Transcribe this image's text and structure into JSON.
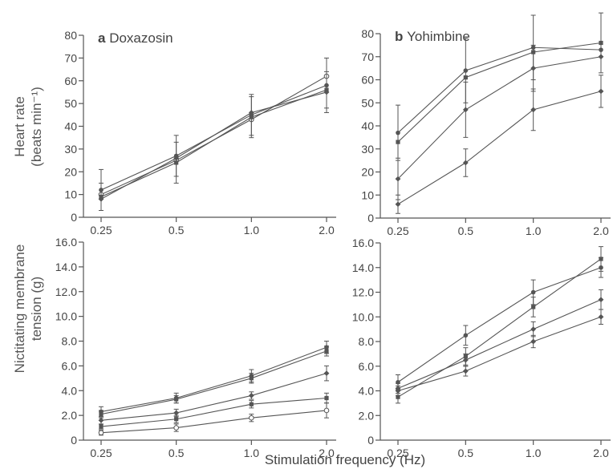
{
  "figure": {
    "ylabel_top": [
      "Heart rate",
      "(beats min⁻¹)"
    ],
    "ylabel_bottom": [
      "Nictitating membrane",
      "tension (g)"
    ],
    "xlabel": "Stimulation frequency (Hz)"
  },
  "chart_data": [
    {
      "id": "doxazosin-heart-rate",
      "type": "line",
      "panel_letter": "a",
      "title": "Doxazosin",
      "x": [
        0.25,
        0.5,
        1.0,
        2.0
      ],
      "xscale": "log",
      "xticks": [
        "0.25",
        "0.5",
        "1.0",
        "2.0"
      ],
      "ylim": [
        0,
        80
      ],
      "yticks": [
        "0",
        "10",
        "20",
        "30",
        "40",
        "50",
        "60",
        "70",
        "80"
      ],
      "grid": false,
      "series": [
        {
          "marker": "open-circle",
          "values": [
            10,
            25,
            43,
            62
          ],
          "err": [
            0,
            0,
            0,
            0
          ]
        },
        {
          "marker": "filled-circle",
          "values": [
            12,
            27,
            45,
            58
          ],
          "err": [
            9,
            9,
            9,
            12
          ]
        },
        {
          "marker": "filled-square",
          "values": [
            9,
            24,
            44,
            56
          ],
          "err": [
            6,
            9,
            9,
            8
          ]
        },
        {
          "marker": "filled-diamond",
          "values": [
            8,
            26,
            46,
            55
          ],
          "err": [
            0,
            0,
            0,
            0
          ]
        }
      ]
    },
    {
      "id": "yohimbine-heart-rate",
      "type": "line",
      "panel_letter": "b",
      "title": "Yohimbine",
      "x": [
        0.25,
        0.5,
        1.0,
        2.0
      ],
      "xscale": "log",
      "xticks": [
        "0.25",
        "0.5",
        "1.0",
        "2.0"
      ],
      "ylim": [
        0,
        80
      ],
      "yticks": [
        "0",
        "10",
        "20",
        "30",
        "40",
        "50",
        "60",
        "70",
        "80"
      ],
      "grid": false,
      "series": [
        {
          "marker": "filled-circle",
          "values": [
            37,
            64,
            74,
            73
          ],
          "err": [
            12,
            14,
            14,
            0
          ]
        },
        {
          "marker": "filled-square",
          "values": [
            33,
            61,
            72,
            76
          ],
          "err": [
            0,
            0,
            0,
            13
          ]
        },
        {
          "marker": "filled-diamond",
          "values": [
            17,
            47,
            65,
            70
          ],
          "err": [
            9,
            12,
            10,
            0
          ]
        },
        {
          "marker": "filled-diamond",
          "values": [
            6,
            24,
            47,
            55
          ],
          "err": [
            4,
            6,
            9,
            7
          ]
        }
      ]
    },
    {
      "id": "doxazosin-nm-tension",
      "type": "line",
      "x": [
        0.25,
        0.5,
        1.0,
        2.0
      ],
      "xscale": "log",
      "xticks": [
        "0.25",
        "0.5",
        "1.0",
        "2.0"
      ],
      "ylim": [
        0,
        16
      ],
      "yticks": [
        "0",
        "2.0",
        "4.0",
        "6.0",
        "8.0",
        "10.0",
        "12.0",
        "14.0",
        "16.0"
      ],
      "grid": false,
      "series": [
        {
          "marker": "filled-circle",
          "values": [
            2.3,
            3.4,
            5.2,
            7.5
          ],
          "err": [
            0.4,
            0.4,
            0.5,
            0.5
          ]
        },
        {
          "marker": "filled-square",
          "values": [
            2.1,
            3.3,
            5.0,
            7.2
          ],
          "err": [
            0.3,
            0.3,
            0.4,
            0.4
          ]
        },
        {
          "marker": "filled-diamond",
          "values": [
            1.6,
            2.2,
            3.6,
            5.4
          ],
          "err": [
            0.3,
            0.3,
            0.3,
            0.6
          ]
        },
        {
          "marker": "filled-square",
          "values": [
            1.1,
            1.7,
            2.9,
            3.4
          ],
          "err": [
            0.2,
            0.3,
            0.3,
            0.4
          ]
        },
        {
          "marker": "open-circle",
          "values": [
            0.6,
            1.0,
            1.8,
            2.4
          ],
          "err": [
            0.2,
            0.3,
            0.3,
            0.6
          ]
        }
      ]
    },
    {
      "id": "yohimbine-nm-tension",
      "type": "line",
      "x": [
        0.25,
        0.5,
        1.0,
        2.0
      ],
      "xscale": "log",
      "xticks": [
        "0.25",
        "0.5",
        "1.0",
        "2.0"
      ],
      "ylim": [
        0,
        16
      ],
      "yticks": [
        "0",
        "2.0",
        "4.0",
        "6.0",
        "8.0",
        "10.0",
        "12.0",
        "14.0",
        "16.0"
      ],
      "grid": false,
      "series": [
        {
          "marker": "filled-circle",
          "values": [
            4.7,
            8.5,
            12.0,
            14.0
          ],
          "err": [
            0.6,
            0.8,
            1.0,
            0.8
          ]
        },
        {
          "marker": "filled-square",
          "values": [
            3.5,
            6.8,
            10.8,
            14.7
          ],
          "err": [
            0.5,
            0.7,
            0.8,
            1.0
          ]
        },
        {
          "marker": "filled-diamond",
          "values": [
            4.2,
            6.5,
            9.0,
            11.4
          ],
          "err": [
            0.4,
            0.5,
            0.6,
            0.8
          ]
        },
        {
          "marker": "filled-diamond",
          "values": [
            4.0,
            5.6,
            8.0,
            10.0
          ],
          "err": [
            0.4,
            0.4,
            0.5,
            0.6
          ]
        }
      ]
    }
  ]
}
